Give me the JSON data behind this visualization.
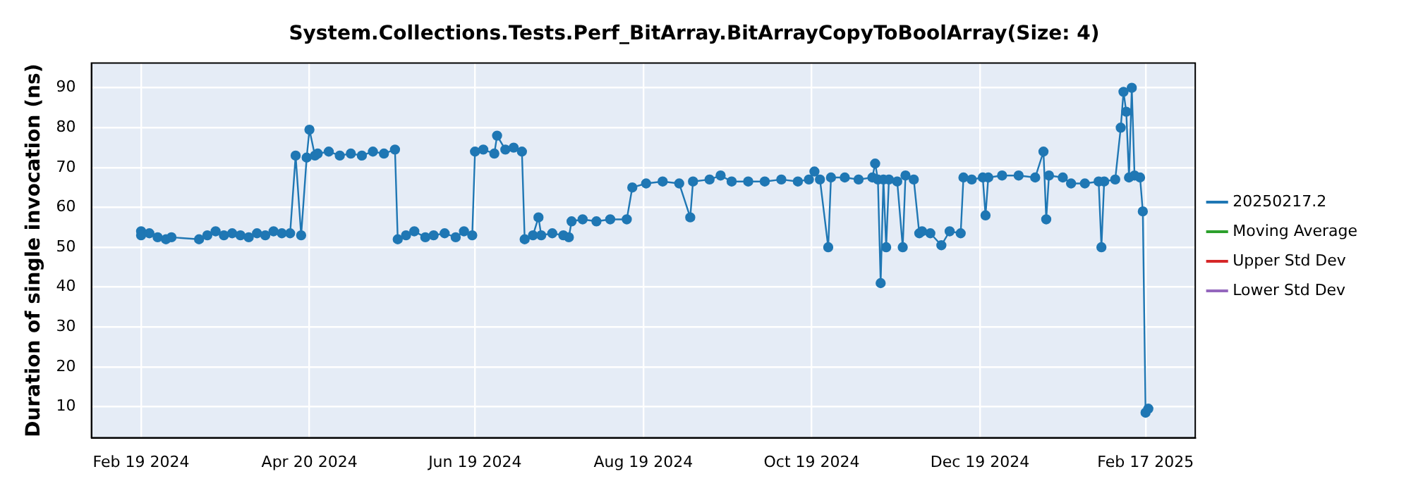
{
  "chart_data": {
    "type": "line",
    "title": "System.Collections.Tests.Perf_BitArray.BitArrayCopyToBoolArray(Size: 4)",
    "ylabel": "Duration of single invocation (ns)",
    "xlim": [
      "2024-02-01",
      "2025-03-07"
    ],
    "xticks": [
      {
        "value": "2024-02-19",
        "label": "Feb 19 2024"
      },
      {
        "value": "2024-04-20",
        "label": "Apr 20 2024"
      },
      {
        "value": "2024-06-19",
        "label": "Jun 19 2024"
      },
      {
        "value": "2024-08-19",
        "label": "Aug 19 2024"
      },
      {
        "value": "2024-10-19",
        "label": "Oct 19 2024"
      },
      {
        "value": "2024-12-19",
        "label": "Dec 19 2024"
      },
      {
        "value": "2025-02-17",
        "label": "Feb 17 2025"
      }
    ],
    "ylim": [
      2.2,
      96.2
    ],
    "yticks": [
      10,
      20,
      30,
      40,
      50,
      60,
      70,
      80,
      90
    ],
    "grid": true,
    "legend": "right",
    "marker": "circle",
    "line_style": "solid",
    "series": [
      {
        "name": "20250217.2",
        "color": "#1f77b4",
        "x": [
          "2024-02-19",
          "2024-02-19",
          "2024-02-22",
          "2024-02-25",
          "2024-02-28",
          "2024-03-01",
          "2024-03-11",
          "2024-03-14",
          "2024-03-17",
          "2024-03-20",
          "2024-03-23",
          "2024-03-26",
          "2024-03-29",
          "2024-04-01",
          "2024-04-04",
          "2024-04-07",
          "2024-04-10",
          "2024-04-13",
          "2024-04-15",
          "2024-04-17",
          "2024-04-19",
          "2024-04-20",
          "2024-04-22",
          "2024-04-23",
          "2024-04-27",
          "2024-05-01",
          "2024-05-05",
          "2024-05-09",
          "2024-05-13",
          "2024-05-17",
          "2024-05-21",
          "2024-05-22",
          "2024-05-25",
          "2024-05-28",
          "2024-06-01",
          "2024-06-04",
          "2024-06-08",
          "2024-06-12",
          "2024-06-15",
          "2024-06-18",
          "2024-06-19",
          "2024-06-22",
          "2024-06-26",
          "2024-06-27",
          "2024-06-30",
          "2024-07-03",
          "2024-07-06",
          "2024-07-07",
          "2024-07-10",
          "2024-07-12",
          "2024-07-13",
          "2024-07-17",
          "2024-07-21",
          "2024-07-23",
          "2024-07-24",
          "2024-07-28",
          "2024-08-02",
          "2024-08-07",
          "2024-08-13",
          "2024-08-15",
          "2024-08-20",
          "2024-08-26",
          "2024-09-01",
          "2024-09-05",
          "2024-09-06",
          "2024-09-12",
          "2024-09-16",
          "2024-09-20",
          "2024-09-26",
          "2024-10-02",
          "2024-10-08",
          "2024-10-14",
          "2024-10-18",
          "2024-10-20",
          "2024-10-22",
          "2024-10-25",
          "2024-10-26",
          "2024-10-31",
          "2024-11-05",
          "2024-11-10",
          "2024-11-11",
          "2024-11-12",
          "2024-11-13",
          "2024-11-14",
          "2024-11-15",
          "2024-11-16",
          "2024-11-19",
          "2024-11-21",
          "2024-11-22",
          "2024-11-25",
          "2024-11-27",
          "2024-11-28",
          "2024-12-01",
          "2024-12-05",
          "2024-12-08",
          "2024-12-12",
          "2024-12-13",
          "2024-12-16",
          "2024-12-20",
          "2024-12-21",
          "2024-12-22",
          "2024-12-27",
          "2025-01-02",
          "2025-01-08",
          "2025-01-11",
          "2025-01-12",
          "2025-01-13",
          "2025-01-18",
          "2025-01-21",
          "2025-01-26",
          "2025-01-31",
          "2025-02-01",
          "2025-02-02",
          "2025-02-06",
          "2025-02-08",
          "2025-02-09",
          "2025-02-10",
          "2025-02-11",
          "2025-02-12",
          "2025-02-13",
          "2025-02-15",
          "2025-02-16",
          "2025-02-17",
          "2025-02-18"
        ],
        "values": [
          54,
          53,
          53.5,
          52.5,
          52,
          52.5,
          52,
          53,
          54,
          53,
          53.5,
          53,
          52.5,
          53.5,
          53,
          54,
          53.5,
          53.5,
          73,
          53,
          72.5,
          79.5,
          73,
          73.5,
          74,
          73,
          73.5,
          73,
          74,
          73.5,
          74.5,
          52,
          53,
          54,
          52.5,
          53,
          53.5,
          52.5,
          54,
          53,
          74,
          74.5,
          73.5,
          78,
          74.5,
          75,
          74,
          52,
          53,
          57.5,
          53,
          53.5,
          53,
          52.5,
          56.5,
          57,
          56.5,
          57,
          57,
          65,
          66,
          66.5,
          66,
          57.5,
          66.5,
          67,
          68,
          66.5,
          66.5,
          66.5,
          67,
          66.5,
          67,
          69,
          67,
          50,
          67.5,
          67.5,
          67,
          67.5,
          71,
          67,
          41,
          67,
          50,
          67,
          66.5,
          50,
          68,
          67,
          53.5,
          54,
          53.5,
          50.5,
          54,
          53.5,
          67.5,
          67,
          67.5,
          58,
          67.5,
          68,
          68,
          67.5,
          74,
          57,
          68,
          67.5,
          66,
          66,
          66.5,
          50,
          66.5,
          67,
          80,
          89,
          84,
          67.5,
          90,
          68,
          67.5,
          59,
          8.5,
          9.5
        ]
      },
      {
        "name": "Moving Average",
        "color": "#2ca02c"
      },
      {
        "name": "Upper Std Dev",
        "color": "#d62728"
      },
      {
        "name": "Lower Std Dev",
        "color": "#9467bd"
      }
    ]
  }
}
